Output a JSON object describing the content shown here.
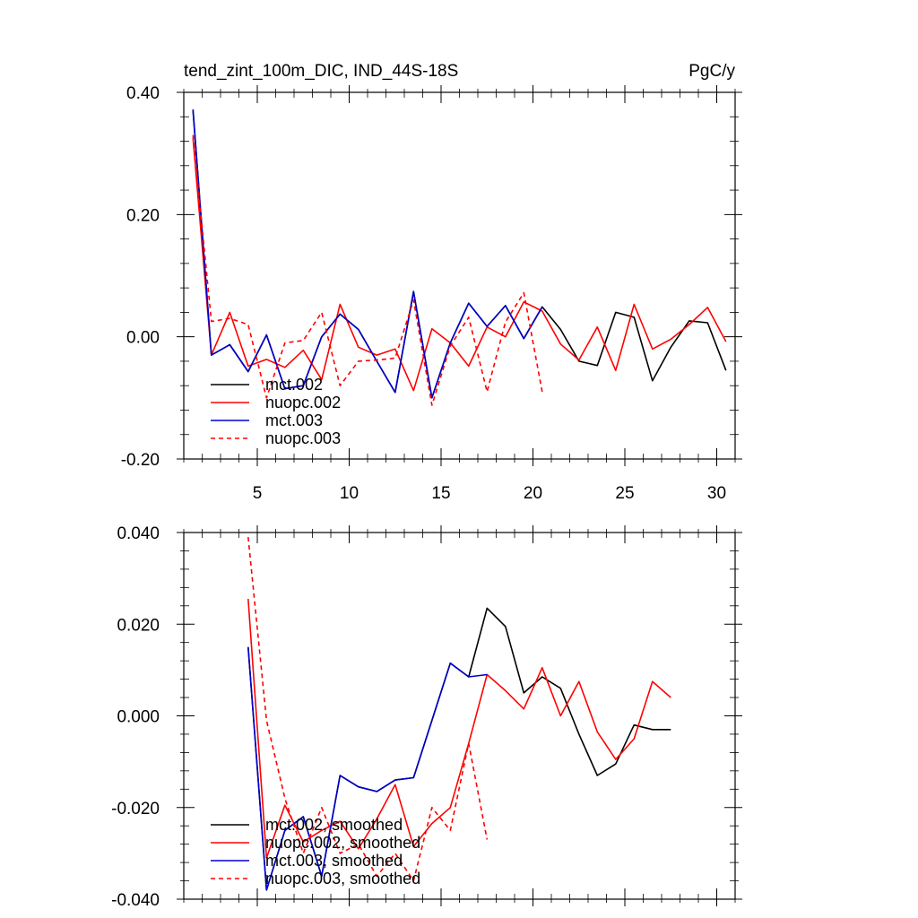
{
  "chart_data": [
    {
      "type": "line",
      "title": "tend_zint_100m_DIC, IND_44S-18S",
      "units": "PgC/y",
      "xlabel": "",
      "ylabel": "",
      "xlim": [
        1,
        31
      ],
      "ylim": [
        -0.2,
        0.4
      ],
      "x_ticks": [
        5,
        10,
        15,
        20,
        25,
        30
      ],
      "x_tick_labels": [
        "5",
        "10",
        "15",
        "20",
        "25",
        "30"
      ],
      "y_ticks": [
        -0.2,
        0.0,
        0.2,
        0.4
      ],
      "y_tick_labels": [
        "-0.20",
        "0.00",
        "0.20",
        "0.40"
      ],
      "grid": false,
      "legend_position": "bottom-left",
      "series": [
        {
          "name": "mct.002",
          "color": "#000000",
          "dash": "solid",
          "x": [
            1.5,
            2.5,
            3.5,
            4.5,
            5.5,
            6.5,
            7.5,
            8.5,
            9.5,
            10.5,
            11.5,
            12.5,
            13.5,
            14.5,
            15.5,
            16.5,
            17.5,
            18.5,
            19.5,
            20.5,
            21.5,
            22.5,
            23.5,
            24.5,
            25.5,
            26.5,
            27.5,
            28.5,
            29.5,
            30.5
          ],
          "values": [
            0.37,
            -0.03,
            -0.013,
            -0.057,
            0.003,
            -0.085,
            -0.08,
            0.0,
            0.037,
            0.012,
            -0.04,
            -0.091,
            0.074,
            -0.1,
            -0.01,
            0.055,
            0.017,
            0.051,
            -0.003,
            0.049,
            0.012,
            -0.04,
            -0.047,
            0.04,
            0.032,
            -0.072,
            -0.017,
            0.026,
            0.023,
            -0.055
          ]
        },
        {
          "name": "nuopc.002",
          "color": "#ff0000",
          "dash": "solid",
          "x": [
            1.5,
            2.5,
            3.5,
            4.5,
            5.5,
            6.5,
            7.5,
            8.5,
            9.5,
            10.5,
            11.5,
            12.5,
            13.5,
            14.5,
            15.5,
            16.5,
            17.5,
            18.5,
            19.5,
            20.5,
            21.5,
            22.5,
            23.5,
            24.5,
            25.5,
            26.5,
            27.5,
            28.5,
            29.5,
            30.5
          ],
          "values": [
            0.325,
            -0.03,
            0.04,
            -0.048,
            -0.037,
            -0.05,
            -0.022,
            -0.07,
            0.053,
            -0.017,
            -0.03,
            -0.02,
            -0.088,
            0.013,
            -0.01,
            -0.048,
            0.016,
            0.0,
            0.057,
            0.042,
            -0.012,
            -0.038,
            0.016,
            -0.055,
            0.053,
            -0.02,
            -0.004,
            0.02,
            0.048,
            -0.008
          ]
        },
        {
          "name": "mct.003",
          "color": "#0000cc",
          "dash": "solid",
          "x": [
            1.5,
            2.5,
            3.5,
            4.5,
            5.5,
            6.5,
            7.5,
            8.5,
            9.5,
            10.5,
            11.5,
            12.5,
            13.5,
            14.5,
            15.5,
            16.5,
            17.5,
            18.5,
            19.5,
            20.5
          ],
          "values": [
            0.372,
            -0.03,
            -0.013,
            -0.057,
            0.003,
            -0.085,
            -0.08,
            0.0,
            0.037,
            0.012,
            -0.04,
            -0.091,
            0.074,
            -0.1,
            -0.01,
            0.055,
            0.017,
            0.051,
            -0.003,
            0.049
          ]
        },
        {
          "name": "nuopc.003",
          "color": "#ff0000",
          "dash": "dashed",
          "x": [
            1.5,
            2.5,
            3.5,
            4.5,
            5.5,
            6.5,
            7.5,
            8.5,
            9.5,
            10.5,
            11.5,
            12.5,
            13.5,
            14.5,
            15.5,
            16.5,
            17.5,
            18.5,
            19.5,
            20.5
          ],
          "values": [
            0.33,
            0.025,
            0.03,
            0.02,
            -0.1,
            -0.01,
            -0.006,
            0.04,
            -0.08,
            -0.04,
            -0.038,
            -0.035,
            0.06,
            -0.112,
            -0.015,
            0.032,
            -0.09,
            0.024,
            0.072,
            -0.09
          ]
        }
      ]
    },
    {
      "type": "line",
      "title": "",
      "xlabel": "",
      "ylabel": "",
      "xlim": [
        1,
        31
      ],
      "ylim": [
        -0.04,
        0.04
      ],
      "x_ticks": [
        5,
        10,
        15,
        20,
        25,
        30
      ],
      "x_tick_labels": [],
      "y_ticks": [
        -0.04,
        -0.02,
        0.0,
        0.02,
        0.04
      ],
      "y_tick_labels": [
        "-0.040",
        "-0.020",
        "0.000",
        "0.020",
        "0.040"
      ],
      "grid": false,
      "legend_position": "bottom-left",
      "series": [
        {
          "name": "mct.002, smoothed",
          "color": "#000000",
          "dash": "solid",
          "x": [
            4.5,
            5.5,
            6.5,
            7.5,
            8.5,
            9.5,
            10.5,
            11.5,
            12.5,
            13.5,
            14.5,
            15.5,
            16.5,
            17.5,
            18.5,
            19.5,
            20.5,
            21.5,
            22.5,
            23.5,
            24.5,
            25.5,
            26.5,
            27.5
          ],
          "values": [
            0.015,
            -0.038,
            -0.025,
            -0.022,
            -0.035,
            -0.013,
            -0.0155,
            -0.0165,
            -0.014,
            -0.0135,
            -0.001,
            0.0115,
            0.0085,
            0.0235,
            0.0195,
            0.005,
            0.0085,
            0.006,
            -0.004,
            -0.013,
            -0.0105,
            -0.002,
            -0.003,
            -0.003
          ]
        },
        {
          "name": "nuopc.002, smoothed",
          "color": "#ff0000",
          "dash": "solid",
          "x": [
            4.5,
            5.5,
            6.5,
            7.5,
            8.5,
            9.5,
            10.5,
            11.5,
            12.5,
            13.5,
            14.5,
            15.5,
            16.5,
            17.5,
            18.5,
            19.5,
            20.5,
            21.5,
            22.5,
            23.5,
            24.5,
            25.5,
            26.5,
            27.5
          ],
          "values": [
            0.0255,
            -0.031,
            -0.0195,
            -0.0275,
            -0.025,
            -0.023,
            -0.029,
            -0.0225,
            -0.015,
            -0.0285,
            -0.0235,
            -0.02,
            -0.006,
            0.009,
            0.0055,
            0.0015,
            0.0105,
            0.0,
            0.0075,
            -0.0035,
            -0.0095,
            -0.005,
            0.0075,
            0.004
          ]
        },
        {
          "name": "mct.003, smoothed",
          "color": "#0000cc",
          "dash": "solid",
          "x": [
            4.5,
            5.5,
            6.5,
            7.5,
            8.5,
            9.5,
            10.5,
            11.5,
            12.5,
            13.5,
            14.5,
            15.5,
            16.5,
            17.5
          ],
          "values": [
            0.015,
            -0.038,
            -0.025,
            -0.022,
            -0.035,
            -0.013,
            -0.0155,
            -0.0165,
            -0.014,
            -0.0135,
            -0.001,
            0.0115,
            0.0085,
            0.009
          ]
        },
        {
          "name": "nuopc.003, smoothed",
          "color": "#ff0000",
          "dash": "dashed",
          "x": [
            4.5,
            5.5,
            6.5,
            7.5,
            8.5,
            9.5,
            10.5,
            11.5,
            12.5,
            13.5,
            14.5,
            15.5,
            16.5,
            17.5
          ],
          "values": [
            0.039,
            -0.001,
            -0.018,
            -0.03,
            -0.02,
            -0.03,
            -0.028,
            -0.035,
            -0.03,
            -0.036,
            -0.02,
            -0.025,
            -0.006,
            -0.027
          ]
        }
      ]
    }
  ]
}
